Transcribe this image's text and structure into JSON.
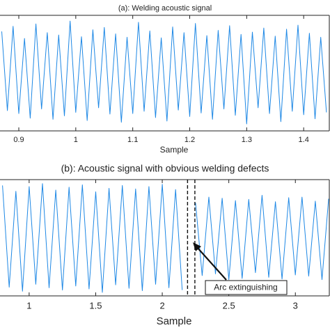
{
  "chart_data": [
    {
      "type": "line",
      "title": "(a): Welding acoustic signal",
      "xlabel": "Sample",
      "xlim": [
        0.867,
        1.445
      ],
      "xticks": [
        0.9,
        1,
        1.1,
        1.2,
        1.3,
        1.4
      ],
      "ylim": [
        -1,
        1
      ],
      "x": [
        0.87,
        0.88,
        0.89,
        0.9,
        0.91,
        0.92,
        0.93,
        0.94,
        0.95,
        0.96,
        0.97,
        0.98,
        0.99,
        1,
        1.01,
        1.02,
        1.03,
        1.04,
        1.05,
        1.06,
        1.07,
        1.08,
        1.09,
        1.1,
        1.11,
        1.12,
        1.13,
        1.14,
        1.15,
        1.16,
        1.17,
        1.18,
        1.19,
        1.2,
        1.21,
        1.22,
        1.23,
        1.24,
        1.25,
        1.26,
        1.27,
        1.28,
        1.29,
        1.3,
        1.31,
        1.32,
        1.33,
        1.34,
        1.35,
        1.36,
        1.37,
        1.38,
        1.39,
        1.4,
        1.41,
        1.42,
        1.43,
        1.44
      ],
      "values": [
        0.72,
        -0.65,
        0.81,
        -0.7,
        0.6,
        -0.78,
        0.85,
        -0.62,
        0.7,
        -0.8,
        0.66,
        -0.74,
        0.9,
        -0.68,
        0.63,
        -0.82,
        0.75,
        -0.6,
        0.79,
        -0.71,
        0.68,
        -0.85,
        0.62,
        -0.7,
        0.88,
        -0.66,
        0.73,
        -0.77,
        0.61,
        -0.83,
        0.8,
        -0.64,
        0.7,
        -0.75,
        0.86,
        -0.69,
        0.65,
        -0.8,
        0.74,
        -0.62,
        0.82,
        -0.73,
        0.67,
        -0.88,
        0.71,
        -0.6,
        0.78,
        -0.7,
        0.64,
        -0.84,
        0.76,
        -0.66,
        0.83,
        -0.72,
        0.69,
        -0.79,
        0.62,
        -0.68
      ],
      "color": "#1e88e5"
    },
    {
      "type": "line",
      "title": "(b): Acoustic signal with obvious welding defects",
      "xlabel": "Sample",
      "xlim": [
        0.781,
        3.255
      ],
      "xticks": [
        1,
        1.5,
        2,
        2.5,
        3
      ],
      "ylim": [
        -1,
        1
      ],
      "x": [
        0.8,
        0.85,
        0.9,
        0.95,
        1,
        1.05,
        1.1,
        1.15,
        1.2,
        1.25,
        1.3,
        1.35,
        1.4,
        1.45,
        1.5,
        1.55,
        1.6,
        1.65,
        1.7,
        1.75,
        1.8,
        1.85,
        1.9,
        1.95,
        2,
        2.05,
        2.1,
        2.15,
        2.2,
        2.25,
        2.3,
        2.35,
        2.4,
        2.45,
        2.5,
        2.55,
        2.6,
        2.65,
        2.7,
        2.75,
        2.8,
        2.85,
        2.9,
        2.95,
        3,
        3.05,
        3.1,
        3.15,
        3.2,
        3.25
      ],
      "values": [
        0.9,
        -0.85,
        0.8,
        -0.92,
        0.88,
        -0.8,
        0.93,
        -0.86,
        0.82,
        -0.9,
        0.87,
        -0.83,
        0.91,
        -0.88,
        0.79,
        -0.94,
        0.85,
        -0.81,
        0.9,
        -0.87,
        0.84,
        -0.91,
        0.88,
        -0.8,
        0.92,
        -0.86,
        0.83,
        -0.9,
        null,
        0.6,
        -0.65,
        0.7,
        -0.62,
        0.68,
        -0.72,
        0.64,
        -0.7,
        0.66,
        -0.6,
        0.73,
        -0.68,
        0.62,
        -0.71,
        0.69,
        -0.64,
        0.7,
        -0.66,
        0.63,
        -0.72,
        0.67
      ],
      "color": "#1e88e5",
      "markers": [
        2.19,
        2.245
      ],
      "annotation": "Arc extinguishing"
    }
  ]
}
